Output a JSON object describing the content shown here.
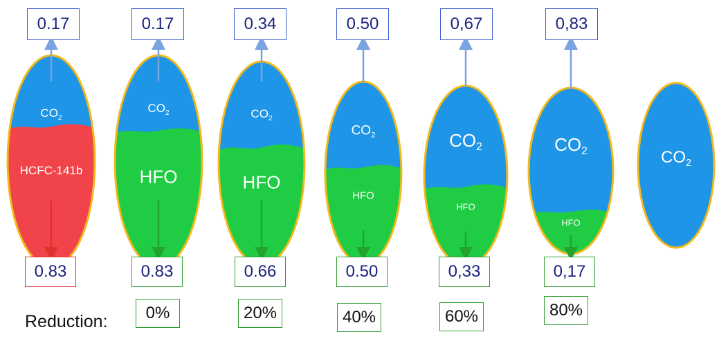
{
  "reduction_label": "Reduction:",
  "colors": {
    "co2": "#1e95e6",
    "hcfc": "#f0444a",
    "hfo": "#1fcc43",
    "outline": "#f2b91c",
    "top_box_border": "#3a5fcd",
    "bottom_box_border": "#2e9e2e",
    "red_box_border": "#e0312f"
  },
  "chart_data": {
    "type": "diagram",
    "columns": [
      {
        "co2_share": "0.17",
        "other_share": "0.83",
        "other_label": "HCFC-141b",
        "co2_label": "CO",
        "co2_sub": "2",
        "reduction": ""
      },
      {
        "co2_share": "0.17",
        "other_share": "0.83",
        "other_label": "HFO",
        "co2_label": "CO",
        "co2_sub": "2",
        "reduction": "0%"
      },
      {
        "co2_share": "0.34",
        "other_share": "0.66",
        "other_label": "HFO",
        "co2_label": "CO",
        "co2_sub": "2",
        "reduction": "20%"
      },
      {
        "co2_share": "0.50",
        "other_share": "0.50",
        "other_label": "HFO",
        "co2_label": "CO",
        "co2_sub": "2",
        "reduction": "40%"
      },
      {
        "co2_share": "0,67",
        "other_share": "0,33",
        "other_label": "HFO",
        "co2_label": "CO",
        "co2_sub": "2",
        "reduction": "60%"
      },
      {
        "co2_share": "0,83",
        "other_share": "0,17",
        "other_label": "HFO",
        "co2_label": "CO",
        "co2_sub": "2",
        "reduction": "80%"
      },
      {
        "co2_share": "",
        "other_share": "",
        "other_label": "",
        "co2_label": "CO",
        "co2_sub": "2",
        "reduction": ""
      }
    ]
  }
}
